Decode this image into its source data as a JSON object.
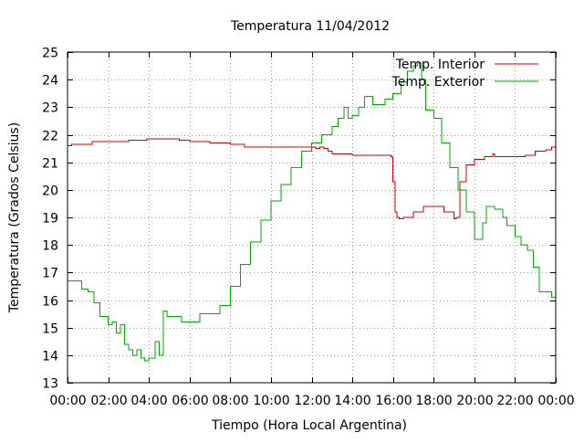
{
  "chart_data": {
    "type": "line",
    "title": "Temperatura 11/04/2012",
    "xlabel": "Tiempo (Hora Local Argentina)",
    "ylabel": "Temperatura (Grados Celsius)",
    "xlim": [
      0,
      24
    ],
    "ylim": [
      13,
      25
    ],
    "grid": true,
    "legend_position": "top-right",
    "x_tick_labels": [
      "00:00",
      "02:00",
      "04:00",
      "06:00",
      "08:00",
      "10:00",
      "12:00",
      "14:00",
      "16:00",
      "18:00",
      "20:00",
      "22:00",
      "00:00"
    ],
    "y_tick_labels": [
      "13",
      "14",
      "15",
      "16",
      "17",
      "18",
      "19",
      "20",
      "21",
      "22",
      "23",
      "24",
      "25"
    ],
    "series": [
      {
        "name": "Temp. Interior",
        "color": "#cc0000",
        "x": [
          0.0,
          0.2,
          1.0,
          1.2,
          2.0,
          3.0,
          3.5,
          3.9,
          4.0,
          5.0,
          5.5,
          5.7,
          6.0,
          6.5,
          7.0,
          7.5,
          8.0,
          8.5,
          8.7,
          9.0,
          10.0,
          11.0,
          12.0,
          12.2,
          12.4,
          12.6,
          12.8,
          13.0,
          13.5,
          14.0,
          15.0,
          15.5,
          15.9,
          16.0,
          16.1,
          16.2,
          16.3,
          16.5,
          17.0,
          17.5,
          18.0,
          18.5,
          19.0,
          19.1,
          19.3,
          19.6,
          20.0,
          20.5,
          20.9,
          21.0,
          21.5,
          22.0,
          22.5,
          23.0,
          23.5,
          23.8,
          24.0
        ],
        "values": [
          21.6,
          21.65,
          21.65,
          21.75,
          21.75,
          21.8,
          21.8,
          21.85,
          21.85,
          21.85,
          21.8,
          21.8,
          21.75,
          21.75,
          21.7,
          21.7,
          21.65,
          21.65,
          21.55,
          21.55,
          21.55,
          21.55,
          21.55,
          21.5,
          21.55,
          21.5,
          21.4,
          21.3,
          21.3,
          21.25,
          21.25,
          21.25,
          21.2,
          20.3,
          19.2,
          19.0,
          18.95,
          19.0,
          19.2,
          19.4,
          19.4,
          19.2,
          18.95,
          19.0,
          20.3,
          20.9,
          21.1,
          21.2,
          21.3,
          21.2,
          21.2,
          21.2,
          21.25,
          21.4,
          21.45,
          21.55,
          21.55
        ]
      },
      {
        "name": "Temp. Exterior",
        "color": "#00aa00",
        "x": [
          0.0,
          0.4,
          0.7,
          1.0,
          1.3,
          1.6,
          1.8,
          2.0,
          2.2,
          2.4,
          2.6,
          2.8,
          3.0,
          3.2,
          3.4,
          3.6,
          3.8,
          4.0,
          4.3,
          4.5,
          4.7,
          4.9,
          5.0,
          5.2,
          5.4,
          5.6,
          5.8,
          6.0,
          6.5,
          7.0,
          7.5,
          8.0,
          8.5,
          9.0,
          9.5,
          10.0,
          10.5,
          11.0,
          11.5,
          12.0,
          12.5,
          13.0,
          13.3,
          13.6,
          13.8,
          14.0,
          14.3,
          14.6,
          15.0,
          15.3,
          15.6,
          16.0,
          16.4,
          16.7,
          17.0,
          17.2,
          17.4,
          17.6,
          18.0,
          18.4,
          18.8,
          19.2,
          19.6,
          20.0,
          20.4,
          20.6,
          20.8,
          21.0,
          21.4,
          21.6,
          22.0,
          22.3,
          22.6,
          22.9,
          23.2,
          23.5,
          23.8,
          24.0
        ],
        "values": [
          16.7,
          16.7,
          16.4,
          16.3,
          15.9,
          15.4,
          15.4,
          15.1,
          15.2,
          14.8,
          15.1,
          14.4,
          14.2,
          14.0,
          14.2,
          13.9,
          13.8,
          13.9,
          14.5,
          14.0,
          15.6,
          15.4,
          15.4,
          15.4,
          15.4,
          15.2,
          15.2,
          15.2,
          15.5,
          15.5,
          15.8,
          16.5,
          17.3,
          18.1,
          18.9,
          19.6,
          20.2,
          20.8,
          21.4,
          21.7,
          22.0,
          22.3,
          22.6,
          23.0,
          22.6,
          22.7,
          23.0,
          23.4,
          23.1,
          23.1,
          23.3,
          23.5,
          23.9,
          24.3,
          24.5,
          24.6,
          24.0,
          22.9,
          22.6,
          21.7,
          20.8,
          20.0,
          19.2,
          18.2,
          18.8,
          19.4,
          19.4,
          19.3,
          19.0,
          18.7,
          18.3,
          18.0,
          17.8,
          17.2,
          16.3,
          16.3,
          16.1,
          15.6
        ]
      }
    ]
  }
}
